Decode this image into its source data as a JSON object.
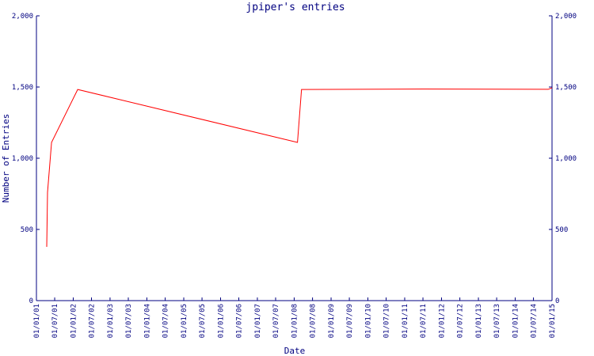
{
  "chart_data": {
    "type": "line",
    "title": "jpiper's entries",
    "x_label": "Date",
    "y_label": "Number of Entries",
    "x": [
      "2001-04-13",
      "2001-04-21",
      "2001-05-31",
      "2002-02-14",
      "2008-02-03",
      "2008-03-14",
      "2011-07-08",
      "2014-11-24",
      "2015-01-01"
    ],
    "series": [
      {
        "name": "entries",
        "color": "#ff0000",
        "values": [
          378,
          760,
          1111,
          1483,
          1111,
          1483,
          1486,
          1484,
          1495
        ]
      }
    ],
    "xlim": [
      "2001-01-01",
      "2015-01-01"
    ],
    "xticks": [
      {
        "value": "2001-01-01",
        "label": "01/01/01"
      },
      {
        "value": "2001-07-01",
        "label": "01/07/01"
      },
      {
        "value": "2002-01-01",
        "label": "01/01/02"
      },
      {
        "value": "2002-07-01",
        "label": "01/07/02"
      },
      {
        "value": "2003-01-01",
        "label": "01/01/03"
      },
      {
        "value": "2003-07-01",
        "label": "01/07/03"
      },
      {
        "value": "2004-01-01",
        "label": "01/01/04"
      },
      {
        "value": "2004-07-01",
        "label": "01/07/04"
      },
      {
        "value": "2005-01-01",
        "label": "01/01/05"
      },
      {
        "value": "2005-07-01",
        "label": "01/07/05"
      },
      {
        "value": "2006-01-01",
        "label": "01/01/06"
      },
      {
        "value": "2006-07-01",
        "label": "01/07/06"
      },
      {
        "value": "2007-01-01",
        "label": "01/01/07"
      },
      {
        "value": "2007-07-01",
        "label": "01/07/07"
      },
      {
        "value": "2008-01-01",
        "label": "01/01/08"
      },
      {
        "value": "2008-07-01",
        "label": "01/07/08"
      },
      {
        "value": "2009-01-01",
        "label": "01/01/09"
      },
      {
        "value": "2009-07-01",
        "label": "01/07/09"
      },
      {
        "value": "2010-01-01",
        "label": "01/01/10"
      },
      {
        "value": "2010-07-01",
        "label": "01/07/10"
      },
      {
        "value": "2011-01-01",
        "label": "01/01/11"
      },
      {
        "value": "2011-07-01",
        "label": "01/07/11"
      },
      {
        "value": "2012-01-01",
        "label": "01/01/12"
      },
      {
        "value": "2012-07-01",
        "label": "01/07/12"
      },
      {
        "value": "2013-01-01",
        "label": "01/01/13"
      },
      {
        "value": "2013-07-01",
        "label": "01/07/13"
      },
      {
        "value": "2014-01-01",
        "label": "01/01/14"
      },
      {
        "value": "2014-07-01",
        "label": "01/07/14"
      },
      {
        "value": "2015-01-01",
        "label": "01/01/15"
      }
    ],
    "ylim": [
      0,
      2000
    ],
    "yticks": [
      0,
      500,
      {
        "value": 1000,
        "label": "1,000"
      },
      {
        "value": 1500,
        "label": "1,500"
      },
      {
        "value": 2000,
        "label": "2,000"
      }
    ],
    "right_axis_labels": true,
    "grid": false
  }
}
